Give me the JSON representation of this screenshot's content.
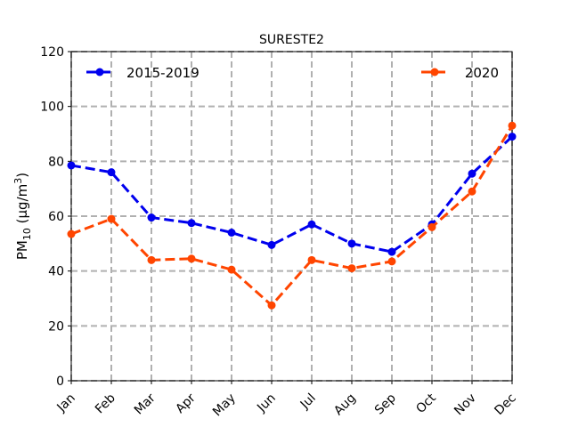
{
  "chart_data": {
    "type": "line",
    "title": "SURESTE2",
    "xlabel": "",
    "ylabel": "PM",
    "ylabel_sub": "10",
    "ylabel_unit": " (μg/m",
    "ylabel_sup": "3",
    "ylabel_close": ")",
    "categories": [
      "Jan",
      "Feb",
      "Mar",
      "Apr",
      "May",
      "Jun",
      "Jul",
      "Aug",
      "Sep",
      "Oct",
      "Nov",
      "Dec"
    ],
    "yticks": [
      "0",
      "20",
      "40",
      "60",
      "80",
      "100",
      "120"
    ],
    "ylim": [
      0,
      120
    ],
    "grid": true,
    "series": [
      {
        "name": "2015-2019",
        "color": "#0000ee",
        "legend_position": "top-left",
        "values": [
          78.5,
          76,
          59.5,
          57.5,
          54,
          49.5,
          57,
          50,
          47,
          57,
          75.5,
          89
        ]
      },
      {
        "name": "2020",
        "color": "#ff4500",
        "legend_position": "top-right",
        "values": [
          53.5,
          59,
          44,
          44.5,
          40.5,
          27.5,
          44,
          41,
          43.5,
          56,
          69,
          93
        ]
      }
    ]
  }
}
